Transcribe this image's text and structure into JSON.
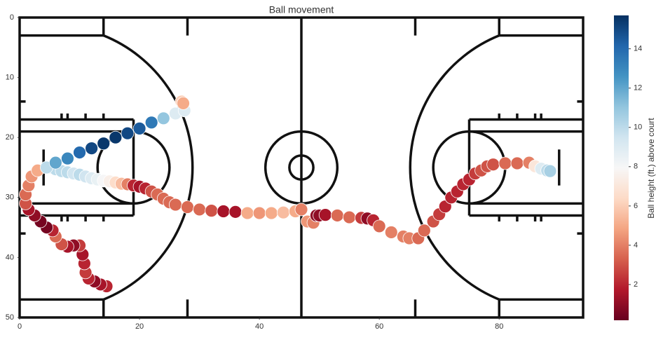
{
  "chart_data": {
    "type": "scatter",
    "title": "Ball movement",
    "colorbar_label": "Ball height (ft.) above court",
    "colormap": "RdBu",
    "xlim": [
      0,
      94
    ],
    "ylim": [
      50,
      0
    ],
    "xticks": [
      0,
      20,
      40,
      60,
      80
    ],
    "yticks": [
      0,
      10,
      20,
      30,
      40,
      50
    ],
    "clim": [
      0.18,
      15.7
    ],
    "cticks": [
      2,
      4,
      6,
      8,
      10,
      12,
      14
    ],
    "x": [
      14.5,
      13.5,
      12.5,
      11.5,
      11,
      10.8,
      10.5,
      10,
      9,
      8,
      7,
      6,
      5.5,
      4.5,
      3.5,
      2.5,
      1.5,
      1,
      1,
      1.5,
      2,
      3,
      5,
      6,
      7,
      8,
      9,
      10,
      11,
      12,
      13,
      14,
      15,
      16,
      17,
      18,
      19,
      20,
      21,
      22,
      23,
      24,
      25,
      26,
      28,
      30,
      32,
      34,
      36,
      38,
      40,
      42,
      44,
      46,
      47,
      48,
      49,
      49.5,
      50,
      51,
      53,
      55,
      57,
      58,
      59,
      60,
      62,
      64,
      65,
      66.5,
      67.5,
      69,
      70,
      71,
      72,
      73,
      74,
      75,
      76,
      77,
      78,
      79,
      81,
      83,
      85,
      86,
      87,
      88,
      88.5,
      4.5,
      6,
      8,
      10,
      12,
      14,
      16,
      18,
      20,
      22,
      24,
      26,
      27.5,
      27,
      27.3
    ],
    "y": [
      44.8,
      44.5,
      44,
      43.5,
      42.5,
      41,
      39.5,
      38,
      38,
      38.2,
      37.8,
      36.5,
      35.5,
      35,
      34,
      33,
      32,
      31,
      29.5,
      28,
      26.5,
      25.5,
      25,
      25.3,
      25.6,
      25.8,
      26,
      26.2,
      26.5,
      26.8,
      27,
      27.2,
      27.3,
      27.5,
      27.7,
      27.8,
      28,
      28.2,
      28.5,
      29,
      29.5,
      30.2,
      30.8,
      31.2,
      31.6,
      32,
      32.2,
      32.3,
      32.4,
      32.6,
      32.6,
      32.6,
      32.5,
      32.3,
      32,
      34,
      34.2,
      33,
      33,
      32.9,
      33,
      33.3,
      33.4,
      33.5,
      33.8,
      34.8,
      35.8,
      36.5,
      36.8,
      36.8,
      35.5,
      34,
      32.8,
      31.5,
      30,
      29,
      27.8,
      27,
      26,
      25.5,
      24.8,
      24.5,
      24.3,
      24.3,
      24.2,
      24.8,
      25.2,
      25.5,
      25.6,
      25,
      24.2,
      23.5,
      22.5,
      21.8,
      21,
      20,
      19.3,
      18.5,
      17.5,
      16.8,
      16,
      15.5,
      14,
      14.3
    ],
    "values": [
      2,
      1.5,
      1,
      2,
      2.5,
      2,
      1.5,
      2.5,
      1,
      1.5,
      3,
      3.5,
      2,
      0.5,
      0.5,
      1,
      1.5,
      3,
      3.5,
      4,
      4.5,
      5,
      10,
      10,
      10,
      10,
      9.5,
      10,
      9.5,
      9,
      8.5,
      8,
      7.5,
      6.5,
      5.5,
      4,
      2,
      1.5,
      2,
      3,
      3.5,
      3.5,
      3.5,
      3.5,
      3.5,
      3.5,
      3,
      1.5,
      1.5,
      5,
      4.5,
      5,
      5.5,
      5,
      4,
      4.5,
      4,
      1,
      1,
      1.5,
      3.5,
      3.5,
      2.5,
      1,
      2,
      3.5,
      4,
      4,
      4,
      3.5,
      3.5,
      3,
      2.5,
      2,
      2,
      2,
      2,
      2,
      2.5,
      3,
      3,
      3,
      3.5,
      3.5,
      4,
      7,
      9,
      10,
      10.5,
      10,
      12,
      13,
      14,
      15,
      15.5,
      15.5,
      15,
      14.5,
      13.5,
      11,
      9,
      9,
      6,
      5
    ]
  }
}
